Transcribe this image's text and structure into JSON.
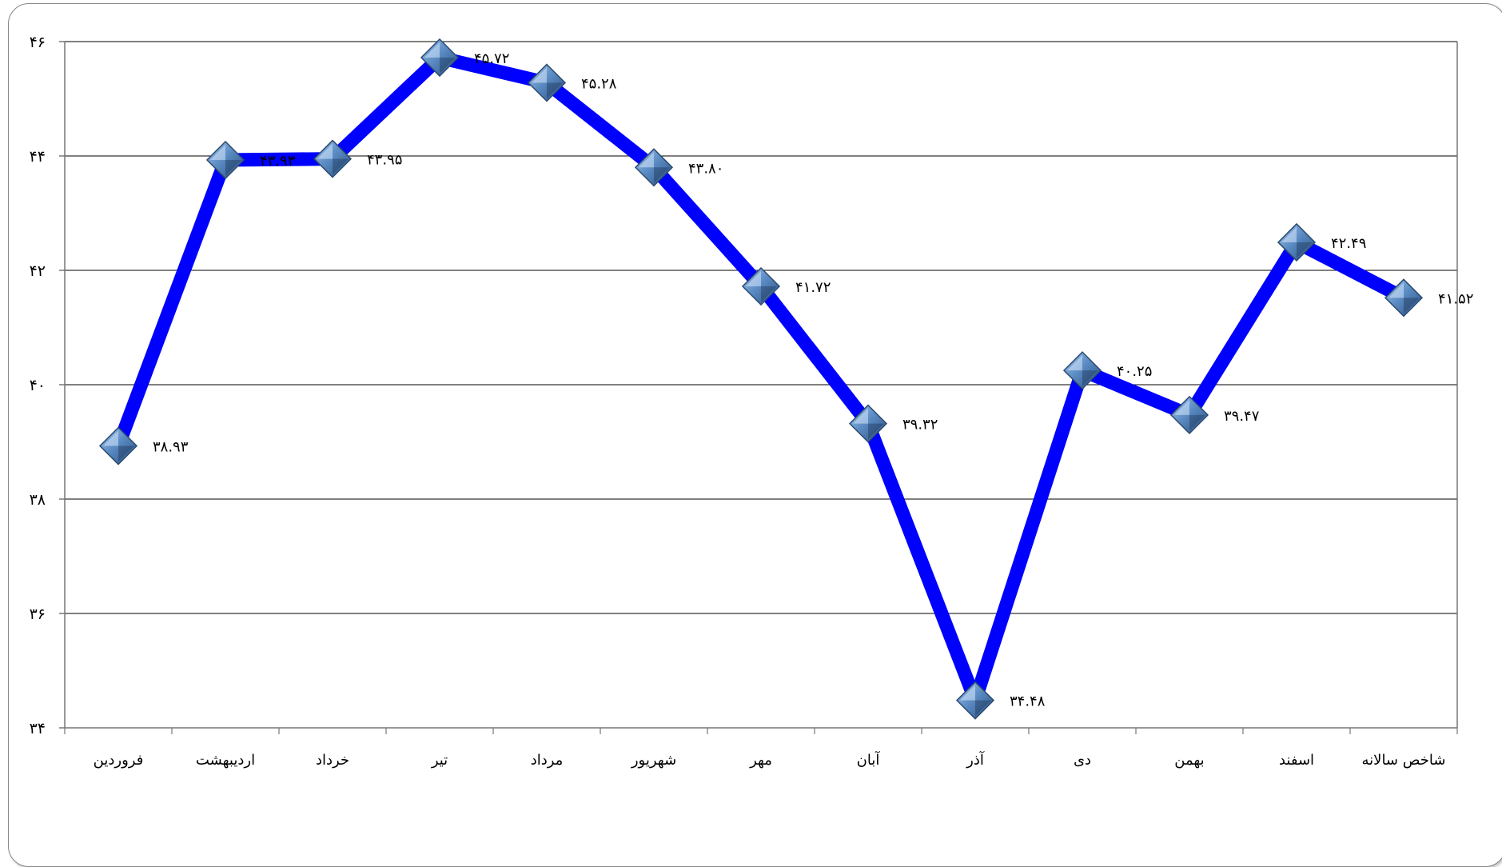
{
  "chart_data": {
    "type": "line",
    "title": "",
    "xlabel": "",
    "ylabel": "",
    "categories": [
      "فروردین",
      "اردیبهشت",
      "خرداد",
      "تیر",
      "مرداد",
      "شهریور",
      "مهر",
      "آبان",
      "آذر",
      "دی",
      "بهمن",
      "اسفند",
      "شاخص سالانه"
    ],
    "series": [
      {
        "values": [
          38.93,
          43.93,
          43.95,
          45.72,
          45.28,
          43.8,
          41.72,
          39.32,
          34.48,
          40.25,
          39.47,
          42.49,
          41.52
        ],
        "value_labels": [
          "۳۸.۹۳",
          "۴۳.۹۳",
          "۴۳.۹۵",
          "۴۵.۷۲",
          "۴۵.۲۸",
          "۴۳.۸۰",
          "۴۱.۷۲",
          "۳۹.۳۲",
          "۳۴.۴۸",
          "۴۰.۲۵",
          "۳۹.۴۷",
          "۴۲.۴۹",
          "۴۱.۵۲"
        ],
        "color": "#0000ff",
        "marker": "diamond",
        "marker_color": "#4f7fb3"
      }
    ],
    "ylim": [
      34,
      46
    ],
    "yticks": [
      34,
      36,
      38,
      40,
      42,
      44,
      46
    ],
    "ytick_labels": [
      "۳۴",
      "۳۶",
      "۳۸",
      "۴۰",
      "۴۲",
      "۴۴",
      "۴۶"
    ],
    "grid": true,
    "legend": "none"
  }
}
